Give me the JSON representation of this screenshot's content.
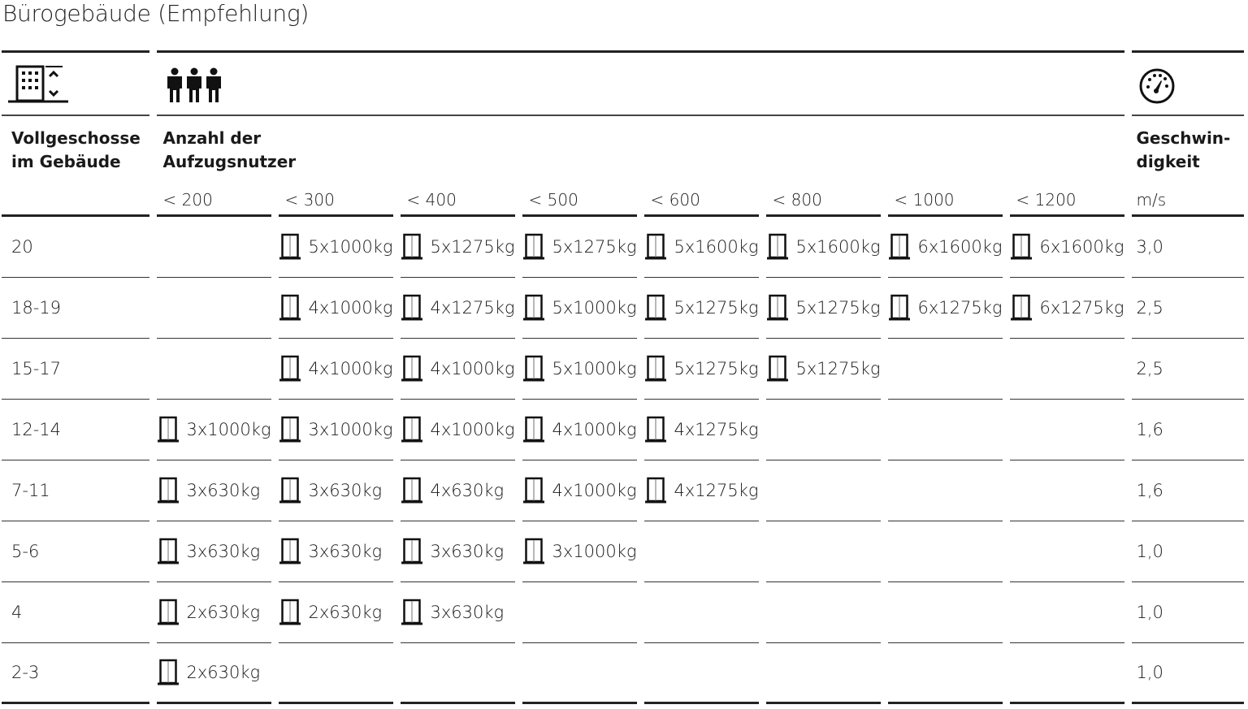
{
  "title": "Bürogebäude (Empfehlung)",
  "headers": {
    "floors_icon": "building-floors-icon",
    "users_icon": "people-icon",
    "speed_icon": "speedometer-icon",
    "floors_label_1": "Vollgeschosse",
    "floors_label_2": "im Gebäude",
    "users_label_1": "Anzahl der",
    "users_label_2": "Aufzugsnutzer",
    "speed_label_1": "Geschwin-",
    "speed_label_2": "digkeit",
    "speed_unit": "m/s",
    "user_ranges": [
      "< 200",
      "< 300",
      "< 400",
      "< 500",
      "< 600",
      "< 800",
      "< 1000",
      "< 1200"
    ]
  },
  "cell_icon": "elevator-icon",
  "rows": [
    {
      "floors": "20",
      "cells": [
        "",
        "5x1000kg",
        "5x1275kg",
        "5x1275kg",
        "5x1600kg",
        "5x1600kg",
        "6x1600kg",
        "6x1600kg"
      ],
      "speed": "3,0"
    },
    {
      "floors": "18-19",
      "cells": [
        "",
        "4x1000kg",
        "4x1275kg",
        "5x1000kg",
        "5x1275kg",
        "5x1275kg",
        "6x1275kg",
        "6x1275kg"
      ],
      "speed": "2,5"
    },
    {
      "floors": "15-17",
      "cells": [
        "",
        "4x1000kg",
        "4x1000kg",
        "5x1000kg",
        "5x1275kg",
        "5x1275kg",
        "",
        ""
      ],
      "speed": "2,5"
    },
    {
      "floors": "12-14",
      "cells": [
        "3x1000kg",
        "3x1000kg",
        "4x1000kg",
        "4x1000kg",
        "4x1275kg",
        "",
        "",
        ""
      ],
      "speed": "1,6"
    },
    {
      "floors": "7-11",
      "cells": [
        "3x630kg",
        "3x630kg",
        "4x630kg",
        "4x1000kg",
        "4x1275kg",
        "",
        "",
        ""
      ],
      "speed": "1,6"
    },
    {
      "floors": "5-6",
      "cells": [
        "3x630kg",
        "3x630kg",
        "3x630kg",
        "3x1000kg",
        "",
        "",
        "",
        ""
      ],
      "speed": "1,0"
    },
    {
      "floors": "4",
      "cells": [
        "2x630kg",
        "2x630kg",
        "3x630kg",
        "",
        "",
        "",
        "",
        ""
      ],
      "speed": "1,0"
    },
    {
      "floors": "2-3",
      "cells": [
        "2x630kg",
        "",
        "",
        "",
        "",
        "",
        "",
        ""
      ],
      "speed": "1,0"
    }
  ]
}
